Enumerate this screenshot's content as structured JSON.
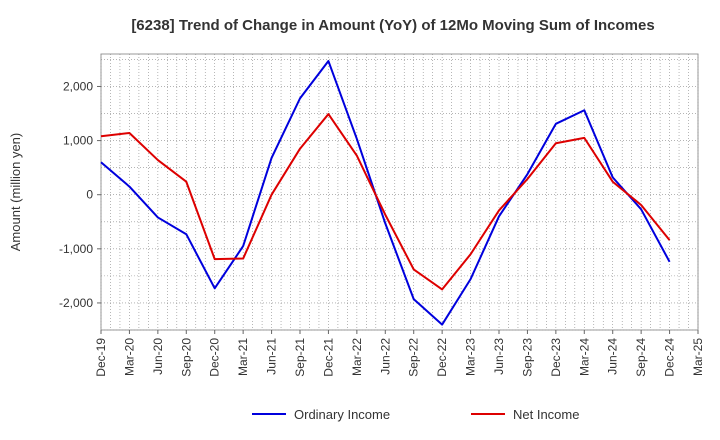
{
  "chart_data": {
    "type": "line",
    "title": "[6238]  Trend of Change in Amount (YoY) of 12Mo Moving Sum of Incomes",
    "ylabel": "Amount (million yen)",
    "xlabel": "",
    "ylim": [
      -2500,
      2600
    ],
    "yticks": [
      -2000,
      -1000,
      0,
      1000,
      2000
    ],
    "ytick_labels": [
      "-2,000",
      "-1,000",
      "0",
      "1,000",
      "2,000"
    ],
    "categories": [
      "Dec-19",
      "Mar-20",
      "Jun-20",
      "Sep-20",
      "Dec-20",
      "Mar-21",
      "Jun-21",
      "Sep-21",
      "Dec-21",
      "Mar-22",
      "Jun-22",
      "Sep-22",
      "Dec-22",
      "Mar-23",
      "Jun-23",
      "Sep-23",
      "Dec-23",
      "Mar-24",
      "Jun-24",
      "Sep-24",
      "Dec-24",
      "Mar-25"
    ],
    "grid": true,
    "legend_position": "bottom",
    "series": [
      {
        "name": "Ordinary Income",
        "color": "#0000dd",
        "values": [
          600,
          150,
          -420,
          -730,
          -1730,
          -950,
          680,
          1780,
          2470,
          1030,
          -530,
          -1930,
          -2400,
          -1560,
          -400,
          380,
          1310,
          1560,
          320,
          -270,
          -1240,
          null
        ]
      },
      {
        "name": "Net Income",
        "color": "#dd0000",
        "values": [
          1080,
          1140,
          640,
          240,
          -1190,
          -1180,
          0,
          850,
          1490,
          720,
          -370,
          -1380,
          -1750,
          -1100,
          -290,
          290,
          950,
          1050,
          240,
          -190,
          -840,
          null
        ]
      }
    ]
  }
}
